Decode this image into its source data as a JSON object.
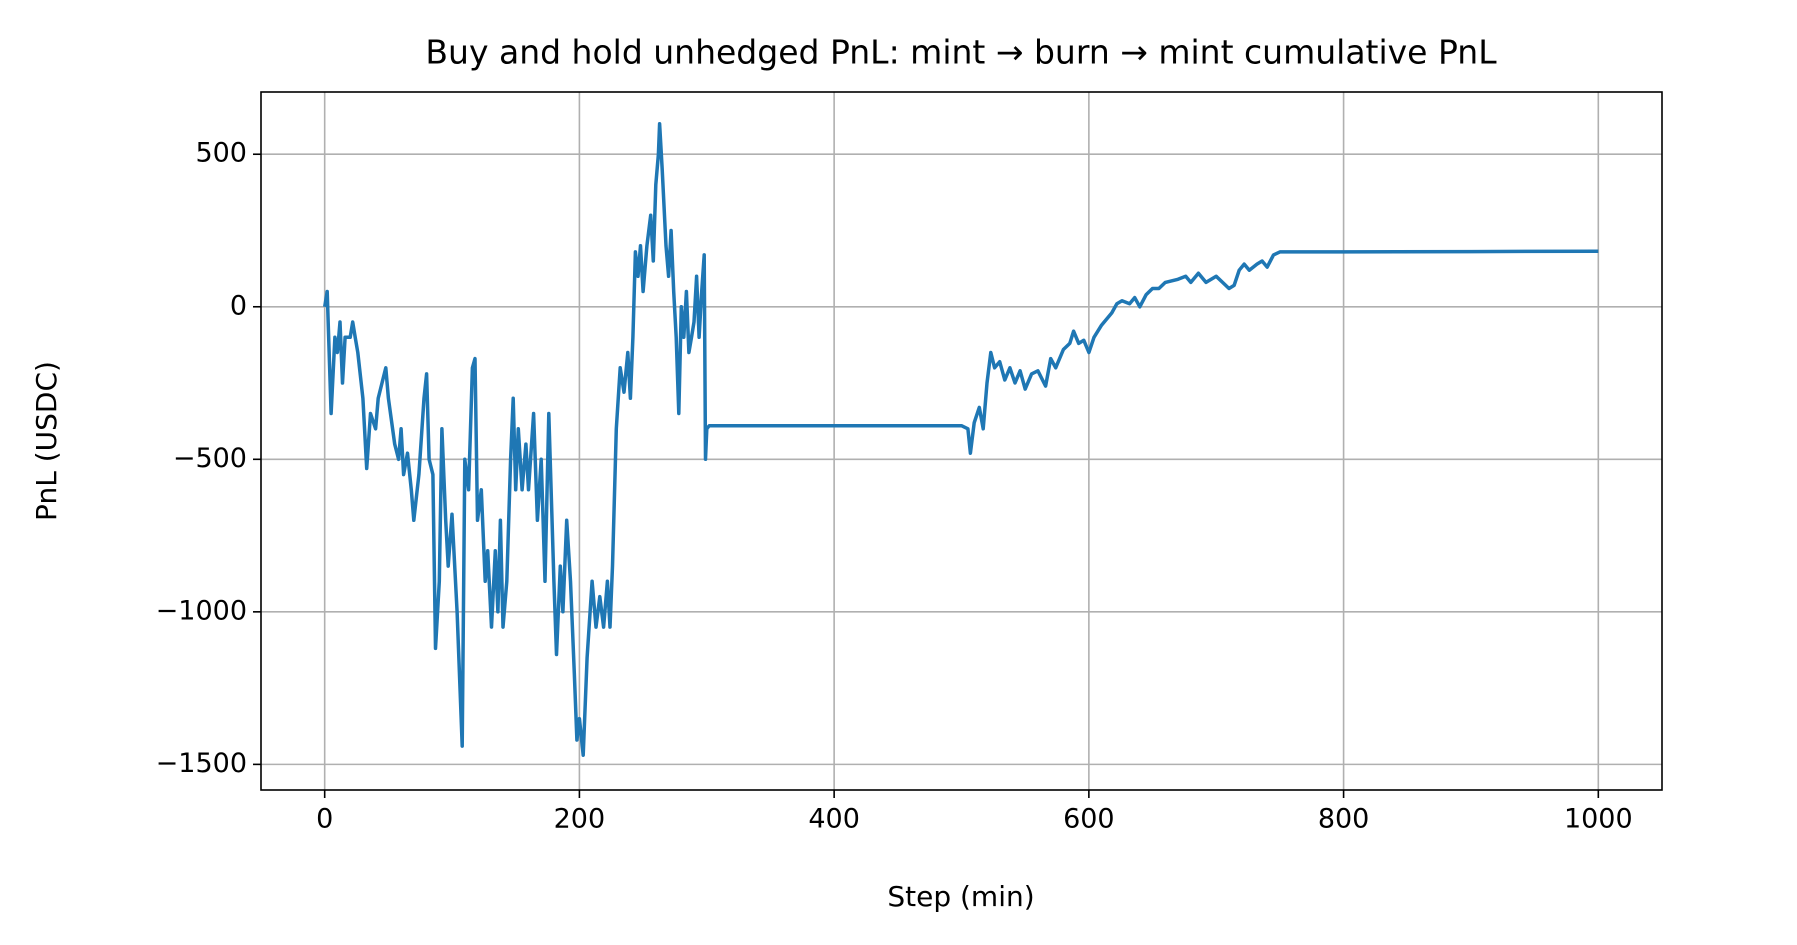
{
  "chart_data": {
    "type": "line",
    "title": "Buy and hold unhedged PnL: mint → burn → mint cumulative PnL",
    "x_label": "Step (min)",
    "y_label": "PnL (USDC)",
    "xlim": [
      -50,
      1050
    ],
    "ylim": [
      -1584,
      704
    ],
    "xticks": [
      0,
      200,
      400,
      600,
      800,
      1000
    ],
    "yticks": [
      {
        "value": -1500,
        "label": "−1500"
      },
      {
        "value": -1000,
        "label": "−1000"
      },
      {
        "value": -500,
        "label": "−500"
      },
      0,
      500
    ],
    "grid": true,
    "x": [
      0,
      2,
      5,
      8,
      10,
      12,
      14,
      16,
      20,
      22,
      24,
      26,
      30,
      33,
      36,
      40,
      42,
      45,
      48,
      50,
      55,
      58,
      60,
      62,
      65,
      68,
      70,
      74,
      78,
      80,
      82,
      85,
      87,
      90,
      92,
      95,
      97,
      100,
      104,
      108,
      110,
      113,
      116,
      118,
      120,
      123,
      126,
      128,
      131,
      134,
      136,
      138,
      140,
      143,
      146,
      148,
      150,
      152,
      155,
      158,
      160,
      164,
      167,
      170,
      173,
      176,
      180,
      182,
      185,
      187,
      190,
      193,
      196,
      198,
      200,
      203,
      206,
      210,
      213,
      216,
      219,
      222,
      224,
      226,
      229,
      232,
      235,
      238,
      240,
      242,
      244,
      246,
      248,
      250,
      253,
      256,
      258,
      260,
      262,
      263,
      265,
      268,
      270,
      272,
      274,
      276,
      278,
      280,
      282,
      284,
      286,
      288,
      290,
      292,
      294,
      296,
      298,
      299,
      300,
      302,
      500,
      505,
      507,
      510,
      514,
      517,
      520,
      523,
      526,
      530,
      534,
      538,
      542,
      546,
      550,
      555,
      560,
      566,
      570,
      574,
      580,
      585,
      588,
      592,
      596,
      600,
      604,
      610,
      614,
      618,
      622,
      626,
      632,
      636,
      640,
      645,
      650,
      655,
      660,
      670,
      676,
      680,
      686,
      692,
      700,
      705,
      710,
      714,
      718,
      722,
      726,
      732,
      736,
      740,
      745,
      750,
      800,
      900,
      1000
    ],
    "series": [
      {
        "name": "PnL",
        "color": "#1f77b4",
        "values": [
          0,
          50,
          -350,
          -100,
          -150,
          -50,
          -250,
          -100,
          -100,
          -50,
          -100,
          -150,
          -300,
          -530,
          -350,
          -400,
          -300,
          -250,
          -200,
          -300,
          -450,
          -500,
          -400,
          -550,
          -480,
          -600,
          -700,
          -550,
          -300,
          -220,
          -500,
          -550,
          -1120,
          -900,
          -400,
          -700,
          -850,
          -680,
          -1000,
          -1440,
          -500,
          -600,
          -200,
          -170,
          -700,
          -600,
          -900,
          -800,
          -1050,
          -800,
          -1000,
          -700,
          -1050,
          -900,
          -500,
          -300,
          -600,
          -400,
          -600,
          -450,
          -600,
          -350,
          -700,
          -500,
          -900,
          -350,
          -900,
          -1140,
          -850,
          -1000,
          -700,
          -900,
          -1200,
          -1420,
          -1350,
          -1470,
          -1150,
          -900,
          -1050,
          -950,
          -1050,
          -900,
          -1050,
          -850,
          -400,
          -200,
          -280,
          -150,
          -300,
          -100,
          180,
          100,
          200,
          50,
          200,
          300,
          150,
          400,
          500,
          600,
          450,
          200,
          100,
          250,
          50,
          -100,
          -350,
          0,
          -100,
          50,
          -150,
          -100,
          -50,
          100,
          -100,
          50,
          170,
          -500,
          -400,
          -390,
          -390,
          -400,
          -480,
          -380,
          -330,
          -400,
          -250,
          -150,
          -200,
          -180,
          -240,
          -200,
          -250,
          -210,
          -270,
          -220,
          -210,
          -260,
          -170,
          -200,
          -140,
          -120,
          -80,
          -120,
          -110,
          -150,
          -100,
          -60,
          -40,
          -20,
          10,
          20,
          10,
          30,
          0,
          40,
          60,
          60,
          80,
          90,
          100,
          80,
          110,
          80,
          100,
          80,
          60,
          70,
          120,
          140,
          120,
          140,
          150,
          130,
          170,
          180,
          180,
          181,
          182
        ]
      }
    ]
  }
}
